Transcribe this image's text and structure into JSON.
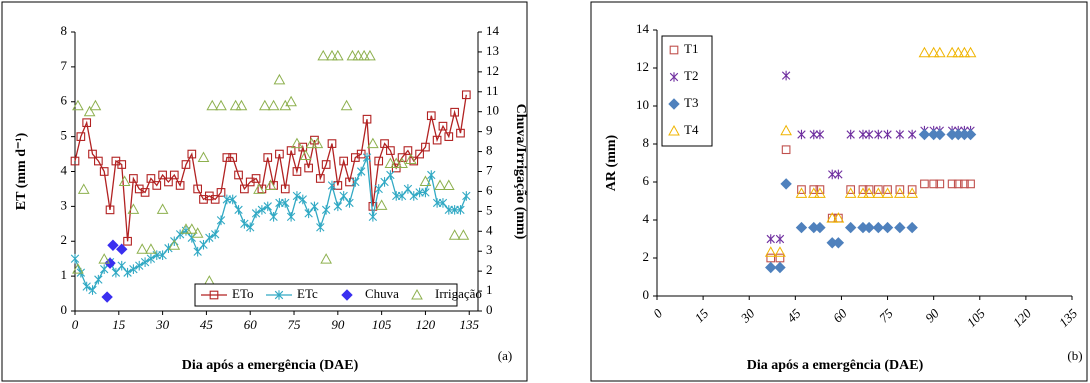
{
  "chart_data": [
    {
      "type": "line",
      "panel_label": "(a)",
      "x_label": "Dia após a emergência (DAE)",
      "y_label": "ET (mm d⁻¹)",
      "y2_label": "Chuva/Irrigação (mm)",
      "xlim": [
        0,
        138
      ],
      "xticks": [
        0,
        15,
        30,
        45,
        60,
        75,
        90,
        105,
        120,
        135
      ],
      "ylim": [
        0,
        8
      ],
      "yticks": [
        0,
        1,
        2,
        3,
        4,
        5,
        6,
        7,
        8
      ],
      "y2lim": [
        0,
        14
      ],
      "y2ticks": [
        0,
        1,
        2,
        3,
        4,
        5,
        6,
        7,
        8,
        9,
        10,
        11,
        12,
        13,
        14
      ],
      "legend": "bottom",
      "x": [
        0,
        2,
        4,
        6,
        8,
        10,
        12,
        14,
        16,
        18,
        20,
        22,
        24,
        26,
        28,
        30,
        32,
        34,
        36,
        38,
        40,
        42,
        44,
        46,
        48,
        50,
        52,
        54,
        56,
        58,
        60,
        62,
        64,
        66,
        68,
        70,
        72,
        74,
        76,
        78,
        80,
        82,
        84,
        86,
        88,
        90,
        92,
        94,
        96,
        98,
        100,
        102,
        104,
        106,
        108,
        110,
        112,
        114,
        116,
        118,
        120,
        122,
        124,
        126,
        128,
        130,
        132,
        134
      ],
      "series": [
        {
          "name": "ETo",
          "color": "#b22222",
          "marker": "square",
          "line": true,
          "values": [
            4.3,
            5.0,
            5.4,
            4.5,
            4.3,
            4.0,
            2.9,
            4.3,
            4.2,
            2.0,
            3.8,
            3.5,
            3.4,
            3.8,
            3.6,
            3.9,
            3.7,
            3.9,
            3.6,
            4.2,
            4.5,
            3.5,
            3.2,
            3.3,
            3.2,
            3.4,
            4.4,
            4.4,
            3.9,
            3.5,
            3.7,
            3.8,
            3.5,
            4.4,
            3.6,
            4.5,
            3.5,
            4.6,
            4.0,
            4.7,
            4.1,
            4.9,
            3.8,
            4.2,
            4.8,
            3.6,
            4.3,
            3.7,
            4.4,
            4.5,
            5.5,
            3.0,
            4.3,
            4.8,
            4.6,
            4.1,
            4.4,
            4.6,
            4.3,
            4.5,
            4.7,
            5.6,
            4.9,
            5.3,
            5.0,
            5.7,
            5.1,
            6.2
          ]
        },
        {
          "name": "ETc",
          "color": "#31a9c4",
          "marker": "star",
          "line": true,
          "values": [
            1.5,
            1.1,
            0.7,
            0.6,
            0.9,
            1.2,
            1.4,
            1.1,
            1.3,
            1.1,
            1.2,
            1.3,
            1.4,
            1.5,
            1.6,
            1.6,
            1.8,
            2.0,
            2.2,
            2.3,
            2.1,
            1.7,
            1.9,
            2.1,
            2.2,
            2.6,
            3.2,
            3.2,
            2.9,
            2.5,
            2.4,
            2.8,
            2.9,
            3.0,
            2.7,
            3.1,
            3.1,
            2.7,
            3.3,
            3.2,
            2.8,
            3.0,
            2.4,
            2.9,
            3.6,
            3.0,
            3.3,
            3.1,
            3.7,
            4.0,
            4.4,
            2.7,
            3.5,
            3.7,
            3.9,
            3.3,
            3.3,
            3.5,
            3.3,
            3.4,
            3.4,
            3.9,
            3.1,
            3.1,
            2.9,
            2.9,
            2.9,
            3.3
          ]
        },
        {
          "name": "Chuva",
          "color": "#3a2ff0",
          "marker": "diamond",
          "axis": "y2",
          "x": [
            11,
            12,
            13,
            16
          ],
          "values": [
            0.7,
            2.4,
            3.3,
            3.1
          ]
        },
        {
          "name": "Irrigação",
          "color": "#8db04e",
          "marker": "triangle",
          "axis": "y2",
          "x": [
            1,
            1,
            3,
            5,
            7,
            10,
            17,
            20,
            23,
            26,
            30,
            34,
            38,
            40,
            42,
            44,
            46,
            47,
            50,
            55,
            57,
            63,
            65,
            67,
            68,
            70,
            72,
            74,
            76,
            79,
            81,
            83,
            85,
            86,
            88,
            90,
            93,
            95,
            97,
            99,
            101,
            102,
            105,
            108,
            110,
            112,
            115,
            120,
            125,
            128,
            130,
            133
          ],
          "values": [
            10.3,
            2.1,
            6.1,
            10.0,
            10.3,
            2.6,
            6.5,
            5.1,
            3.1,
            3.1,
            5.1,
            3.3,
            4.1,
            4.1,
            3.9,
            7.7,
            1.5,
            10.3,
            10.3,
            10.3,
            10.3,
            6.1,
            10.3,
            6.3,
            10.3,
            11.6,
            10.3,
            10.5,
            8.4,
            7.8,
            8.4,
            8.4,
            12.8,
            2.6,
            12.8,
            12.8,
            10.3,
            12.8,
            12.8,
            12.8,
            12.8,
            8.4,
            5.3,
            7.4,
            7.4,
            7.4,
            7.6,
            6.5,
            6.3,
            6.3,
            3.8,
            3.8
          ]
        }
      ]
    },
    {
      "type": "scatter",
      "panel_label": "(b)",
      "x_label": "Dia após a emergência (DAE)",
      "y_label": "AR (mm)",
      "xlim": [
        0,
        135
      ],
      "xticks": [
        0,
        15,
        30,
        45,
        60,
        75,
        90,
        105,
        120,
        135
      ],
      "ylim": [
        0,
        14
      ],
      "yticks": [
        0,
        2,
        4,
        6,
        8,
        10,
        12,
        14
      ],
      "legend": "upper left",
      "x": [
        37,
        40,
        42,
        47,
        51,
        53,
        57,
        59,
        63,
        67,
        69,
        72,
        75,
        79,
        83,
        87,
        90,
        92,
        96,
        98,
        100,
        102
      ],
      "series": [
        {
          "name": "T1",
          "color": "#c0504d",
          "marker": "square",
          "values": [
            2.0,
            2.0,
            7.7,
            5.6,
            5.6,
            5.6,
            4.1,
            4.1,
            5.6,
            5.6,
            5.6,
            5.6,
            5.6,
            5.6,
            5.6,
            5.9,
            5.9,
            5.9,
            5.9,
            5.9,
            5.9,
            5.9
          ]
        },
        {
          "name": "T2",
          "color": "#7030a0",
          "marker": "star",
          "values": [
            3.0,
            3.0,
            11.6,
            8.5,
            8.5,
            8.5,
            6.4,
            6.4,
            8.5,
            8.5,
            8.5,
            8.5,
            8.5,
            8.5,
            8.5,
            8.7,
            8.7,
            8.7,
            8.7,
            8.7,
            8.7,
            8.7
          ]
        },
        {
          "name": "T3",
          "color": "#4f81bd",
          "marker": "diamond",
          "values": [
            1.5,
            1.5,
            5.9,
            3.6,
            3.6,
            3.6,
            2.8,
            2.8,
            3.6,
            3.6,
            3.6,
            3.6,
            3.6,
            3.6,
            3.6,
            8.5,
            8.5,
            8.5,
            8.5,
            8.5,
            8.5,
            8.5
          ]
        },
        {
          "name": "T4",
          "color": "#f0b400",
          "marker": "triangle",
          "values": [
            2.3,
            2.3,
            8.7,
            5.4,
            5.4,
            5.4,
            4.1,
            4.1,
            5.4,
            5.4,
            5.4,
            5.4,
            5.4,
            5.4,
            5.4,
            12.8,
            12.8,
            12.8,
            12.8,
            12.8,
            12.8,
            12.8
          ]
        }
      ]
    }
  ]
}
